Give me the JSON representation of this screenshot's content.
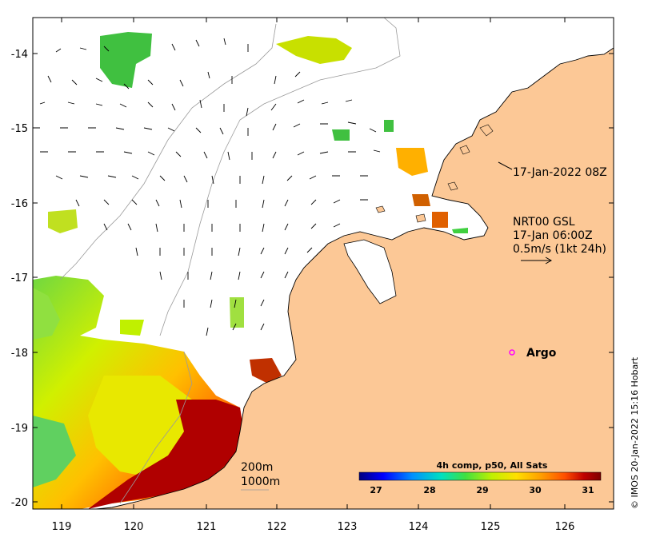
{
  "map": {
    "x_ticks": [
      "119",
      "120",
      "121",
      "122",
      "123",
      "124",
      "125",
      "126"
    ],
    "y_ticks": [
      "-14",
      "-15",
      "-16",
      "-17",
      "-18",
      "-19",
      "-20"
    ],
    "timestamp_label": "17-Jan-2022 08Z",
    "current_source": "NRT00 GSL",
    "current_time": "17-Jan 06:00Z",
    "current_scale": "0.5m/s (1kt 24h)",
    "argo_label": "Argo",
    "contour_200_label": "200m",
    "contour_1000_label": "1000m",
    "credit": "© IMOS 20-Jan-2022 15:16 Hobart"
  },
  "colorbar": {
    "title": "4h comp, p50, All Sats",
    "ticks": [
      "27",
      "28",
      "29",
      "30",
      "31"
    ],
    "colors": [
      "#00007f",
      "#0000ff",
      "#0090ff",
      "#00e0c0",
      "#40e040",
      "#c0f000",
      "#ffe000",
      "#ffa000",
      "#ff5000",
      "#c00000",
      "#7f0000"
    ]
  },
  "colors": {
    "land": "#fcc896",
    "coast": "#000000",
    "argo_marker": "#ff00ff"
  }
}
